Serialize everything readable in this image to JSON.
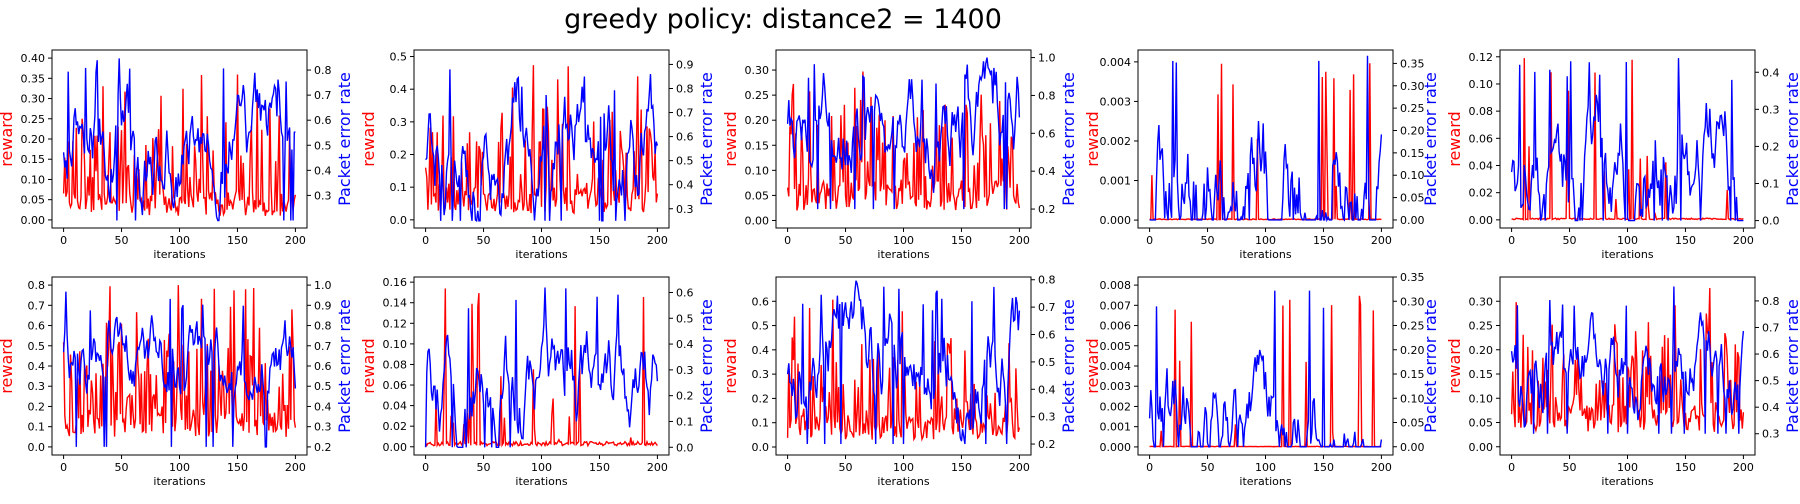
{
  "figure_title": "greedy policy: distance2 = 1400",
  "chart_data": [
    {
      "type": "line",
      "xlabel": "iterations",
      "y1label": "reward",
      "y2label": "Packet error rate",
      "y1color": "#ff0000",
      "y2color": "#0000ff",
      "xlim": [
        -10,
        210
      ],
      "xticks": [
        0,
        50,
        100,
        150,
        200
      ],
      "ylim": [
        -0.02,
        0.42
      ],
      "yticks": [
        "0.00",
        "0.05",
        "0.10",
        "0.15",
        "0.20",
        "0.25",
        "0.30",
        "0.35",
        "0.40"
      ],
      "y2lim": [
        0.17,
        0.88
      ],
      "y2ticks": [
        "0.3",
        "0.4",
        "0.5",
        "0.6",
        "0.7",
        "0.8"
      ],
      "y2ticks_min": 0.2,
      "y2step": 0.1,
      "reward": {
        "seed": 11,
        "base": 0.01,
        "spread": 0.06,
        "spikeProb": 0.35,
        "max": 0.4,
        "min": 0.0
      },
      "per": {
        "seed": 12,
        "base": 0.55,
        "amp": 0.12,
        "min": 0.2,
        "max": 0.86
      }
    },
    {
      "type": "line",
      "xlabel": "iterations",
      "y1label": "reward",
      "y2label": "Packet error rate",
      "y1color": "#ff0000",
      "y2color": "#0000ff",
      "xlim": [
        -10,
        210
      ],
      "xticks": [
        0,
        50,
        100,
        150,
        200
      ],
      "ylim": [
        -0.025,
        0.52
      ],
      "yticks": [
        "0.0",
        "0.1",
        "0.2",
        "0.3",
        "0.4",
        "0.5"
      ],
      "y2lim": [
        0.22,
        0.96
      ],
      "y2ticks": [
        "0.3",
        "0.4",
        "0.5",
        "0.6",
        "0.7",
        "0.8",
        "0.9"
      ],
      "reward": {
        "seed": 21,
        "base": 0.02,
        "spread": 0.08,
        "spikeProb": 0.4,
        "max": 0.5,
        "min": 0.0
      },
      "per": {
        "seed": 22,
        "base": 0.55,
        "amp": 0.15,
        "min": 0.25,
        "max": 0.93
      }
    },
    {
      "type": "line",
      "xlabel": "iterations",
      "y1label": "reward",
      "y2label": "Packet error rate",
      "y1color": "#ff0000",
      "y2color": "#0000ff",
      "xlim": [
        -10,
        210
      ],
      "xticks": [
        0,
        50,
        100,
        150,
        200
      ],
      "ylim": [
        -0.015,
        0.34
      ],
      "yticks": [
        "0.00",
        "0.05",
        "0.10",
        "0.15",
        "0.20",
        "0.25",
        "0.30"
      ],
      "y2lim": [
        0.1,
        1.04
      ],
      "y2ticks": [
        "0.2",
        "0.4",
        "0.6",
        "0.8",
        "1.0"
      ],
      "reward": {
        "seed": 31,
        "base": 0.02,
        "spread": 0.06,
        "spikeProb": 0.4,
        "max": 0.33,
        "min": 0.0
      },
      "per": {
        "seed": 32,
        "base": 0.6,
        "amp": 0.15,
        "min": 0.2,
        "max": 1.0
      }
    },
    {
      "type": "line",
      "xlabel": "iterations",
      "y1label": "reward",
      "y2label": "Packet error rate",
      "y1color": "#ff0000",
      "y2color": "#0000ff",
      "xlim": [
        -10,
        210
      ],
      "xticks": [
        0,
        50,
        100,
        150,
        200
      ],
      "ylim": [
        -0.0002,
        0.0043
      ],
      "yticks": [
        "0.000",
        "0.001",
        "0.002",
        "0.003",
        "0.004"
      ],
      "y2lim": [
        -0.018,
        0.38
      ],
      "y2ticks": [
        "0.00",
        "0.05",
        "0.10",
        "0.15",
        "0.20",
        "0.25",
        "0.30",
        "0.35"
      ],
      "reward": {
        "seed": 41,
        "base": 1e-05,
        "spread": 2e-05,
        "spikeProb": 0.02,
        "max": 0.0042,
        "min": 0.0
      },
      "per": {
        "seed": 42,
        "base": 0.06,
        "amp": 0.1,
        "min": 0.0,
        "max": 0.37
      }
    },
    {
      "type": "line",
      "xlabel": "iterations",
      "y1label": "reward",
      "y2label": "Packet error rate",
      "y1color": "#ff0000",
      "y2color": "#0000ff",
      "xlim": [
        -10,
        210
      ],
      "xticks": [
        0,
        50,
        100,
        150,
        200
      ],
      "ylim": [
        -0.006,
        0.125
      ],
      "yticks": [
        "0.00",
        "0.02",
        "0.04",
        "0.06",
        "0.08",
        "0.10",
        "0.12"
      ],
      "y2lim": [
        -0.02,
        0.46
      ],
      "y2ticks": [
        "0.0",
        "0.1",
        "0.2",
        "0.3",
        "0.4"
      ],
      "reward": {
        "seed": 51,
        "base": 0.0002,
        "spread": 0.001,
        "spikeProb": 0.05,
        "max": 0.12,
        "min": 0.0
      },
      "per": {
        "seed": 52,
        "base": 0.15,
        "amp": 0.1,
        "min": 0.0,
        "max": 0.44
      }
    },
    {
      "type": "line",
      "xlabel": "iterations",
      "y1label": "reward",
      "y2label": "Packet error rate",
      "y1color": "#ff0000",
      "y2color": "#0000ff",
      "xlim": [
        -10,
        210
      ],
      "xticks": [
        0,
        50,
        100,
        150,
        200
      ],
      "ylim": [
        -0.04,
        0.84
      ],
      "yticks": [
        "0.0",
        "0.1",
        "0.2",
        "0.3",
        "0.4",
        "0.5",
        "0.6",
        "0.7",
        "0.8"
      ],
      "y2lim": [
        0.16,
        1.04
      ],
      "y2ticks": [
        "0.2",
        "0.3",
        "0.4",
        "0.5",
        "0.6",
        "0.7",
        "0.8",
        "0.9",
        "1.0"
      ],
      "reward": {
        "seed": 61,
        "base": 0.05,
        "spread": 0.12,
        "spikeProb": 0.45,
        "max": 0.8,
        "min": 0.0
      },
      "per": {
        "seed": 62,
        "base": 0.65,
        "amp": 0.12,
        "min": 0.2,
        "max": 1.0
      }
    },
    {
      "type": "line",
      "xlabel": "iterations",
      "y1label": "reward",
      "y2label": "Packet error rate",
      "y1color": "#ff0000",
      "y2color": "#0000ff",
      "xlim": [
        -10,
        210
      ],
      "xticks": [
        0,
        50,
        100,
        150,
        200
      ],
      "ylim": [
        -0.008,
        0.165
      ],
      "yticks": [
        "0.00",
        "0.02",
        "0.04",
        "0.06",
        "0.08",
        "0.10",
        "0.12",
        "0.14",
        "0.16"
      ],
      "y2lim": [
        -0.03,
        0.66
      ],
      "y2ticks": [
        "0.0",
        "0.1",
        "0.2",
        "0.3",
        "0.4",
        "0.5",
        "0.6"
      ],
      "reward": {
        "seed": 71,
        "base": 0.001,
        "spread": 0.004,
        "spikeProb": 0.1,
        "max": 0.155,
        "min": 0.0
      },
      "per": {
        "seed": 72,
        "base": 0.25,
        "amp": 0.12,
        "min": 0.0,
        "max": 0.62
      }
    },
    {
      "type": "line",
      "xlabel": "iterations",
      "y1label": "reward",
      "y2label": "Packet error rate",
      "y1color": "#ff0000",
      "y2color": "#0000ff",
      "xlim": [
        -10,
        210
      ],
      "xticks": [
        0,
        50,
        100,
        150,
        200
      ],
      "ylim": [
        -0.033,
        0.7
      ],
      "yticks": [
        "0.0",
        "0.1",
        "0.2",
        "0.3",
        "0.4",
        "0.5",
        "0.6"
      ],
      "y2lim": [
        0.16,
        0.81
      ],
      "y2ticks": [
        "0.2",
        "0.3",
        "0.4",
        "0.5",
        "0.6",
        "0.7",
        "0.8"
      ],
      "reward": {
        "seed": 81,
        "base": 0.03,
        "spread": 0.1,
        "spikeProb": 0.45,
        "max": 0.66,
        "min": 0.0
      },
      "per": {
        "seed": 82,
        "base": 0.5,
        "amp": 0.12,
        "min": 0.2,
        "max": 0.8
      }
    },
    {
      "type": "line",
      "xlabel": "iterations",
      "y1label": "reward",
      "y2label": "Packet error rate",
      "y1color": "#ff0000",
      "y2color": "#0000ff",
      "xlim": [
        -10,
        210
      ],
      "xticks": [
        0,
        50,
        100,
        150,
        200
      ],
      "ylim": [
        -0.0004,
        0.0084
      ],
      "yticks": [
        "0.000",
        "0.001",
        "0.002",
        "0.003",
        "0.004",
        "0.005",
        "0.006",
        "0.007",
        "0.008"
      ],
      "y2lim": [
        -0.017,
        0.35
      ],
      "y2ticks": [
        "0.00",
        "0.05",
        "0.10",
        "0.15",
        "0.20",
        "0.25",
        "0.30",
        "0.35"
      ],
      "reward": {
        "seed": 91,
        "base": 1e-05,
        "spread": 2e-05,
        "spikeProb": 0.02,
        "max": 0.008,
        "min": 0.0
      },
      "per": {
        "seed": 92,
        "base": 0.04,
        "amp": 0.07,
        "min": 0.0,
        "max": 0.33
      }
    },
    {
      "type": "line",
      "xlabel": "iterations",
      "y1label": "reward",
      "y2label": "Packet error rate",
      "y1color": "#ff0000",
      "y2color": "#0000ff",
      "xlim": [
        -10,
        210
      ],
      "xticks": [
        0,
        50,
        100,
        150,
        200
      ],
      "ylim": [
        -0.017,
        0.35
      ],
      "yticks": [
        "0.00",
        "0.05",
        "0.10",
        "0.15",
        "0.20",
        "0.25",
        "0.30"
      ],
      "y2lim": [
        0.22,
        0.89
      ],
      "y2ticks": [
        "0.3",
        "0.4",
        "0.5",
        "0.6",
        "0.7",
        "0.8"
      ],
      "reward": {
        "seed": 101,
        "base": 0.03,
        "spread": 0.06,
        "spikeProb": 0.4,
        "max": 0.33,
        "min": 0.0
      },
      "per": {
        "seed": 102,
        "base": 0.55,
        "amp": 0.1,
        "min": 0.3,
        "max": 0.87
      }
    }
  ]
}
